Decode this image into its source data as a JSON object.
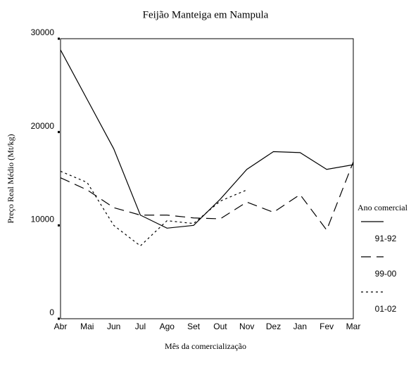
{
  "chart_data": {
    "type": "line",
    "title": "Feijão Manteiga em Nampula",
    "x_label": "Mês da comercialização",
    "y_label": "Preço Real Médio (Mt/kg)",
    "legend_title": "Ano comercial",
    "legend": "right",
    "categories": [
      "Abr",
      "Mai",
      "Jun",
      "Jul",
      "Ago",
      "Set",
      "Out",
      "Nov",
      "Dez",
      "Jan",
      "Fev",
      "Mar"
    ],
    "ylim": [
      0,
      30000
    ],
    "yticks": [
      0,
      10000,
      20000,
      30000
    ],
    "series": [
      {
        "name": "91-92",
        "color": "#000000",
        "style": "solid",
        "values": [
          28800,
          23500,
          18200,
          11100,
          9700,
          10000,
          12800,
          16000,
          17900,
          17800,
          16000,
          16500
        ]
      },
      {
        "name": "99-00",
        "color": "#000000",
        "style": "dashed",
        "values": [
          15100,
          13800,
          11900,
          11100,
          11100,
          10800,
          10700,
          12500,
          11400,
          13300,
          9500,
          16800
        ]
      },
      {
        "name": "01-02",
        "color": "#000000",
        "style": "dotted",
        "values": [
          15800,
          14600,
          10000,
          7800,
          10500,
          10200,
          12600,
          13800,
          null,
          null,
          null,
          null
        ]
      }
    ]
  }
}
